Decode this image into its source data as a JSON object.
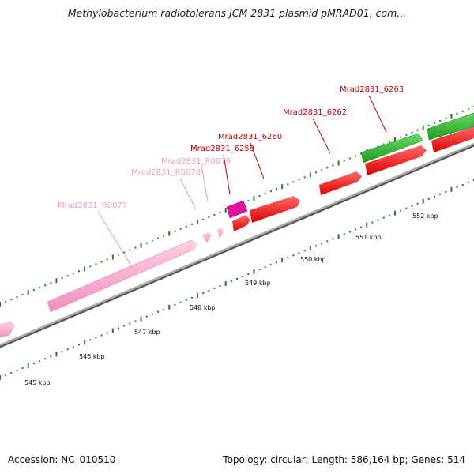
{
  "title": "Methylobacterium radiotolerans JCM 2831 plasmid pMRAD01, com...",
  "footer": {
    "accession": "Accession: NC_010510",
    "summary": "Topology: circular; Length: 586,164 bp; Genes: 514"
  },
  "scale_labels": [
    "545 kbp",
    "546 kbp",
    "547 kbp",
    "548 kbp",
    "549 kbp",
    "550 kbp",
    "551 kbp",
    "552 kbp"
  ],
  "gene_labels": [
    {
      "text": "Mrad2831_R0077",
      "color": "#f49ac2"
    },
    {
      "text": "Mrad2831_R0078",
      "color": "#f49ac2"
    },
    {
      "text": "Mrad2831_R0079",
      "color": "#f49ac2"
    },
    {
      "text": "Mrad2831_6259",
      "color": "#cc0000"
    },
    {
      "text": "Mrad2831_6260",
      "color": "#cc0000"
    },
    {
      "text": "Mrad2831_6262",
      "color": "#cc0000"
    },
    {
      "text": "Mrad2831_6263",
      "color": "#cc0000"
    }
  ],
  "colors": {
    "rna_gene": "#f7a8cc",
    "rna_gene_selected": "#e0149a",
    "cds_gene": "#ff1a1a",
    "green_feature": "#33bb33",
    "tick": "#2a7a2a",
    "backbone": "#777777"
  }
}
